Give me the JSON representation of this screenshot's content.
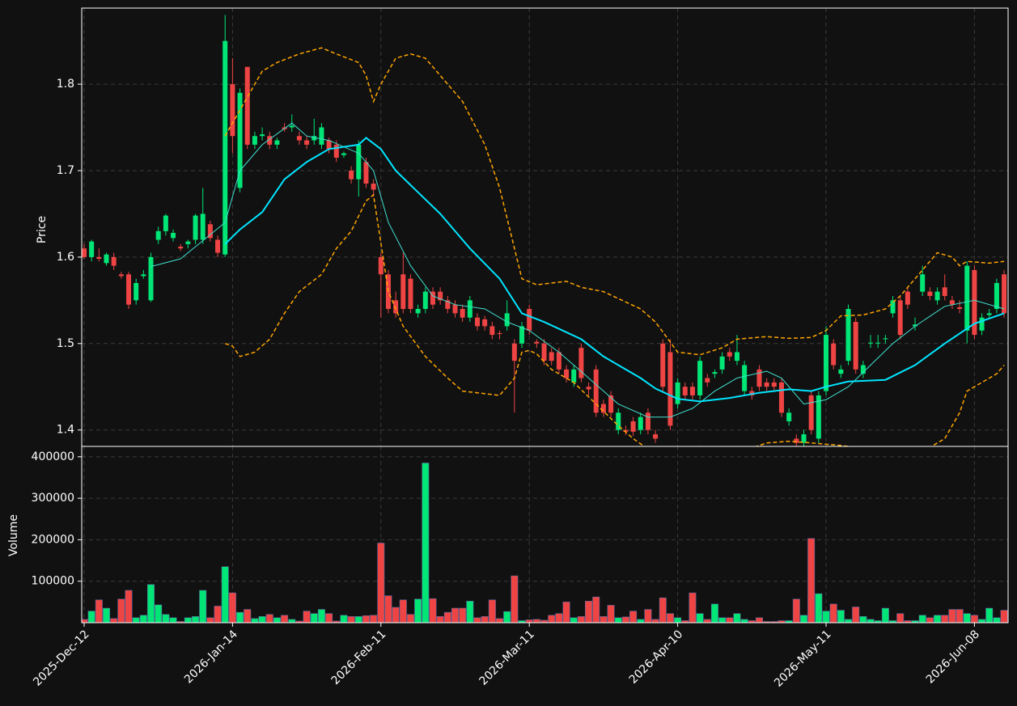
{
  "chart_data": {
    "type": "candlestick",
    "categories": [
      "2025-Dec-12",
      null,
      null,
      null,
      null,
      null,
      null,
      null,
      null,
      null,
      null,
      null,
      null,
      null,
      null,
      null,
      null,
      null,
      null,
      null,
      "2026-Jan-14",
      null,
      null,
      null,
      null,
      null,
      null,
      null,
      null,
      null,
      null,
      null,
      null,
      null,
      null,
      null,
      null,
      null,
      null,
      null,
      "2026-Feb-11",
      null,
      null,
      null,
      null,
      null,
      null,
      null,
      null,
      null,
      null,
      null,
      null,
      null,
      null,
      null,
      null,
      null,
      null,
      null,
      "2026-Mar-11",
      null,
      null,
      null,
      null,
      null,
      null,
      null,
      null,
      null,
      null,
      null,
      null,
      null,
      null,
      null,
      null,
      null,
      null,
      null,
      "2026-Apr-10",
      null,
      null,
      null,
      null,
      null,
      null,
      null,
      null,
      null,
      null,
      null,
      null,
      null,
      null,
      null,
      null,
      null,
      null,
      null,
      "2026-May-11",
      null,
      null,
      null,
      null,
      null,
      null,
      null,
      null,
      null,
      null,
      null,
      null,
      null,
      null,
      null,
      null,
      null,
      null,
      null,
      "2026-Jun-08",
      null,
      null,
      null,
      null
    ],
    "open": [
      1.61,
      1.6,
      1.6,
      1.593,
      1.6,
      1.58,
      1.58,
      1.55,
      1.578,
      1.55,
      1.62,
      1.63,
      1.622,
      1.612,
      1.615,
      1.62,
      1.62,
      1.638,
      1.62,
      1.603,
      1.8,
      1.68,
      1.82,
      1.73,
      1.74,
      1.74,
      1.73,
      1.75,
      1.75,
      1.74,
      1.735,
      1.735,
      1.73,
      1.735,
      1.73,
      1.718,
      1.7,
      1.69,
      1.71,
      1.685,
      1.6,
      1.58,
      1.55,
      1.58,
      1.575,
      1.535,
      1.54,
      1.56,
      1.56,
      1.55,
      1.545,
      1.54,
      1.53,
      1.53,
      1.528,
      1.52,
      1.512,
      1.52,
      1.5,
      1.5,
      1.54,
      1.502,
      1.5,
      1.49,
      1.49,
      1.47,
      1.455,
      1.495,
      1.45,
      1.47,
      1.43,
      1.44,
      1.4,
      1.4,
      1.41,
      1.4,
      1.42,
      1.395,
      1.5,
      1.49,
      1.43,
      1.45,
      1.45,
      1.44,
      1.46,
      1.465,
      1.47,
      1.49,
      1.48,
      1.445,
      1.445,
      1.47,
      1.455,
      1.455,
      1.455,
      1.41,
      1.39,
      1.385,
      1.44,
      1.39,
      1.445,
      1.5,
      1.465,
      1.48,
      1.525,
      1.465,
      1.5,
      1.5,
      1.505,
      1.535,
      1.55,
      1.56,
      1.52,
      1.56,
      1.56,
      1.55,
      1.565,
      1.55,
      1.542,
      1.515,
      1.585,
      1.515,
      1.533,
      1.54,
      1.58
    ],
    "high": [
      1.615,
      1.62,
      1.61,
      1.605,
      1.605,
      1.583,
      1.583,
      1.575,
      1.585,
      1.605,
      1.635,
      1.65,
      1.632,
      1.615,
      1.62,
      1.65,
      1.68,
      1.642,
      1.625,
      1.88,
      1.83,
      1.795,
      1.82,
      1.745,
      1.75,
      1.745,
      1.738,
      1.755,
      1.765,
      1.745,
      1.74,
      1.76,
      1.755,
      1.738,
      1.735,
      1.722,
      1.705,
      1.735,
      1.715,
      1.69,
      1.605,
      1.585,
      1.56,
      1.605,
      1.58,
      1.545,
      1.565,
      1.565,
      1.565,
      1.555,
      1.55,
      1.545,
      1.555,
      1.535,
      1.532,
      1.525,
      1.515,
      1.55,
      1.505,
      1.525,
      1.545,
      1.505,
      1.505,
      1.495,
      1.495,
      1.475,
      1.475,
      1.5,
      1.455,
      1.475,
      1.435,
      1.445,
      1.425,
      1.405,
      1.415,
      1.42,
      1.425,
      1.4,
      1.505,
      1.505,
      1.46,
      1.455,
      1.455,
      1.485,
      1.465,
      1.47,
      1.49,
      1.495,
      1.51,
      1.48,
      1.45,
      1.475,
      1.46,
      1.46,
      1.46,
      1.425,
      1.395,
      1.4,
      1.445,
      1.445,
      1.52,
      1.505,
      1.475,
      1.545,
      1.53,
      1.48,
      1.51,
      1.51,
      1.51,
      1.555,
      1.555,
      1.565,
      1.53,
      1.59,
      1.565,
      1.565,
      1.58,
      1.555,
      1.55,
      1.595,
      1.59,
      1.535,
      1.54,
      1.575,
      1.585
    ],
    "low": [
      1.598,
      1.595,
      1.595,
      1.59,
      1.585,
      1.575,
      1.54,
      1.545,
      1.575,
      1.548,
      1.615,
      1.625,
      1.618,
      1.607,
      1.61,
      1.615,
      1.615,
      1.618,
      1.6,
      1.6,
      1.72,
      1.675,
      1.725,
      1.725,
      1.735,
      1.725,
      1.725,
      1.745,
      1.745,
      1.73,
      1.725,
      1.73,
      1.725,
      1.72,
      1.71,
      1.715,
      1.685,
      1.67,
      1.68,
      1.67,
      1.53,
      1.535,
      1.53,
      1.535,
      1.535,
      1.53,
      1.535,
      1.54,
      1.545,
      1.535,
      1.53,
      1.525,
      1.525,
      1.515,
      1.515,
      1.505,
      1.505,
      1.515,
      1.42,
      1.495,
      1.51,
      1.495,
      1.475,
      1.475,
      1.465,
      1.455,
      1.45,
      1.455,
      1.44,
      1.415,
      1.415,
      1.415,
      1.395,
      1.394,
      1.393,
      1.395,
      1.395,
      1.385,
      1.445,
      1.4,
      1.425,
      1.435,
      1.435,
      1.435,
      1.45,
      1.46,
      1.465,
      1.48,
      1.475,
      1.44,
      1.435,
      1.445,
      1.445,
      1.445,
      1.415,
      1.405,
      1.38,
      1.38,
      1.395,
      1.385,
      1.44,
      1.47,
      1.46,
      1.475,
      1.465,
      1.46,
      1.495,
      1.495,
      1.5,
      1.53,
      1.505,
      1.54,
      1.515,
      1.555,
      1.55,
      1.545,
      1.55,
      1.54,
      1.535,
      1.5,
      1.505,
      1.51,
      1.53,
      1.535,
      1.53
    ],
    "close": [
      1.6,
      1.618,
      1.598,
      1.603,
      1.59,
      1.578,
      1.545,
      1.57,
      1.58,
      1.6,
      1.63,
      1.648,
      1.628,
      1.61,
      1.618,
      1.648,
      1.65,
      1.622,
      1.605,
      1.85,
      1.74,
      1.79,
      1.73,
      1.74,
      1.742,
      1.73,
      1.735,
      1.748,
      1.752,
      1.735,
      1.73,
      1.74,
      1.75,
      1.725,
      1.715,
      1.72,
      1.69,
      1.73,
      1.685,
      1.678,
      1.58,
      1.54,
      1.535,
      1.54,
      1.54,
      1.54,
      1.56,
      1.545,
      1.55,
      1.54,
      1.535,
      1.53,
      1.55,
      1.52,
      1.52,
      1.51,
      1.511,
      1.535,
      1.48,
      1.52,
      1.515,
      1.5,
      1.48,
      1.48,
      1.47,
      1.46,
      1.47,
      1.46,
      1.447,
      1.42,
      1.42,
      1.42,
      1.42,
      1.398,
      1.398,
      1.415,
      1.4,
      1.39,
      1.45,
      1.405,
      1.455,
      1.44,
      1.44,
      1.48,
      1.455,
      1.467,
      1.485,
      1.485,
      1.49,
      1.475,
      1.44,
      1.45,
      1.45,
      1.45,
      1.42,
      1.42,
      1.385,
      1.395,
      1.4,
      1.44,
      1.51,
      1.475,
      1.47,
      1.54,
      1.47,
      1.475,
      1.501,
      1.501,
      1.506,
      1.55,
      1.51,
      1.545,
      1.522,
      1.58,
      1.555,
      1.56,
      1.555,
      1.545,
      1.54,
      1.59,
      1.51,
      1.53,
      1.535,
      1.57,
      1.535
    ],
    "volume": [
      8000,
      28000,
      55000,
      35000,
      10000,
      57000,
      78000,
      12000,
      18000,
      92000,
      43000,
      20000,
      12000,
      3000,
      12000,
      15000,
      78000,
      12000,
      40000,
      135000,
      72000,
      25000,
      32000,
      10000,
      15000,
      20000,
      12000,
      18000,
      8000,
      4000,
      28000,
      22000,
      32000,
      22000,
      4000,
      18000,
      15000,
      15000,
      17000,
      18000,
      192000,
      65000,
      37000,
      55000,
      20000,
      57000,
      385000,
      58000,
      15000,
      25000,
      35000,
      35000,
      52000,
      12000,
      15000,
      55000,
      10000,
      27000,
      113000,
      5000,
      7000,
      8000,
      6000,
      18000,
      22000,
      50000,
      12000,
      15000,
      52000,
      62000,
      15000,
      42000,
      12000,
      14000,
      28000,
      8000,
      32000,
      8000,
      60000,
      22000,
      12000,
      5000,
      72000,
      22000,
      8000,
      45000,
      12000,
      12000,
      22000,
      8000,
      5000,
      12000,
      3000,
      3000,
      5000,
      5000,
      57000,
      18000,
      203000,
      70000,
      28000,
      45000,
      30000,
      8000,
      38000,
      15000,
      8000,
      5000,
      35000,
      5000,
      22000,
      5000,
      5000,
      18000,
      12000,
      18000,
      18000,
      32000,
      32000,
      22000,
      18000,
      8000,
      35000,
      12000,
      30000
    ],
    "up_color": "#00e676",
    "down_color": "#ef4444",
    "ylim": [
      1.381,
      1.888
    ],
    "yticks": [
      1.4,
      1.5,
      1.6,
      1.7,
      1.8
    ],
    "y_label": "Price",
    "volume_ylim": [
      0,
      425000
    ],
    "volume_yticks": [
      100000,
      200000,
      300000,
      400000
    ],
    "volume_label": "Volume",
    "grid": true,
    "lines": [
      {
        "color": "#40e0d0",
        "width": 1,
        "dash": false,
        "x": [
          9,
          13,
          17,
          19,
          21,
          24,
          28,
          30,
          33,
          37,
          39,
          41,
          44,
          47,
          50,
          54,
          57,
          60,
          64,
          68,
          72,
          76,
          79,
          82,
          85,
          88,
          92,
          94,
          97,
          100,
          103,
          106,
          109,
          112,
          116,
          120,
          124
        ],
        "values": [
          1.589,
          1.598,
          1.626,
          1.64,
          1.7,
          1.73,
          1.755,
          1.74,
          1.735,
          1.72,
          1.7,
          1.64,
          1.59,
          1.555,
          1.545,
          1.54,
          1.525,
          1.515,
          1.49,
          1.46,
          1.43,
          1.415,
          1.415,
          1.425,
          1.445,
          1.46,
          1.468,
          1.46,
          1.43,
          1.435,
          1.45,
          1.475,
          1.5,
          1.52,
          1.543,
          1.55,
          1.54
        ]
      },
      {
        "color": "#00e5ff",
        "width": 2,
        "dash": false,
        "x": [
          19,
          21,
          24,
          27,
          30,
          33,
          37,
          38,
          40,
          42,
          45,
          48,
          52,
          56,
          59,
          62,
          67,
          70,
          75,
          77,
          80,
          83,
          87,
          91,
          95,
          98,
          100,
          103,
          108,
          112,
          116,
          120,
          124
        ],
        "values": [
          1.615,
          1.632,
          1.652,
          1.69,
          1.71,
          1.725,
          1.73,
          1.738,
          1.725,
          1.7,
          1.675,
          1.65,
          1.61,
          1.575,
          1.535,
          1.525,
          1.505,
          1.485,
          1.46,
          1.448,
          1.436,
          1.433,
          1.437,
          1.443,
          1.447,
          1.445,
          1.45,
          1.456,
          1.458,
          1.475,
          1.5,
          1.523,
          1.535
        ]
      },
      {
        "color": "#ffa500",
        "width": 1.5,
        "dash": true,
        "x": [
          19,
          21,
          24,
          26,
          29,
          32,
          34,
          37,
          38,
          39,
          40,
          42,
          44,
          46,
          48,
          51,
          54,
          56,
          58,
          59,
          61,
          65,
          67,
          70,
          72,
          75,
          77,
          80,
          83,
          86,
          88,
          92,
          95,
          98,
          100,
          102,
          105,
          108,
          110,
          113,
          115,
          117,
          118,
          119,
          122,
          124
        ],
        "values": [
          1.74,
          1.77,
          1.815,
          1.825,
          1.835,
          1.842,
          1.835,
          1.825,
          1.81,
          1.78,
          1.8,
          1.83,
          1.835,
          1.83,
          1.81,
          1.78,
          1.73,
          1.68,
          1.61,
          1.575,
          1.568,
          1.572,
          1.565,
          1.56,
          1.552,
          1.54,
          1.525,
          1.49,
          1.487,
          1.495,
          1.505,
          1.508,
          1.506,
          1.507,
          1.515,
          1.532,
          1.533,
          1.54,
          1.555,
          1.585,
          1.605,
          1.6,
          1.59,
          1.595,
          1.593,
          1.595
        ]
      },
      {
        "color": "#ffa500",
        "width": 1.5,
        "dash": true,
        "x": [
          19,
          20,
          21,
          23,
          25,
          27,
          29,
          32,
          34,
          36,
          38,
          39,
          41,
          43,
          46,
          49,
          51,
          53,
          56,
          58,
          59,
          60,
          61,
          63,
          66,
          69,
          72,
          74,
          76,
          79,
          83,
          87,
          92,
          95,
          98,
          102,
          106,
          110,
          114,
          116,
          118,
          119,
          121,
          123,
          124
        ],
        "values": [
          1.5,
          1.497,
          1.485,
          1.49,
          1.505,
          1.535,
          1.56,
          1.58,
          1.61,
          1.63,
          1.665,
          1.672,
          1.56,
          1.52,
          1.485,
          1.46,
          1.445,
          1.443,
          1.44,
          1.46,
          1.49,
          1.492,
          1.488,
          1.47,
          1.455,
          1.43,
          1.405,
          1.39,
          1.378,
          1.37,
          1.381,
          1.37,
          1.385,
          1.387,
          1.385,
          1.382,
          1.378,
          1.378,
          1.38,
          1.39,
          1.42,
          1.445,
          1.455,
          1.465,
          1.475
        ]
      }
    ]
  }
}
